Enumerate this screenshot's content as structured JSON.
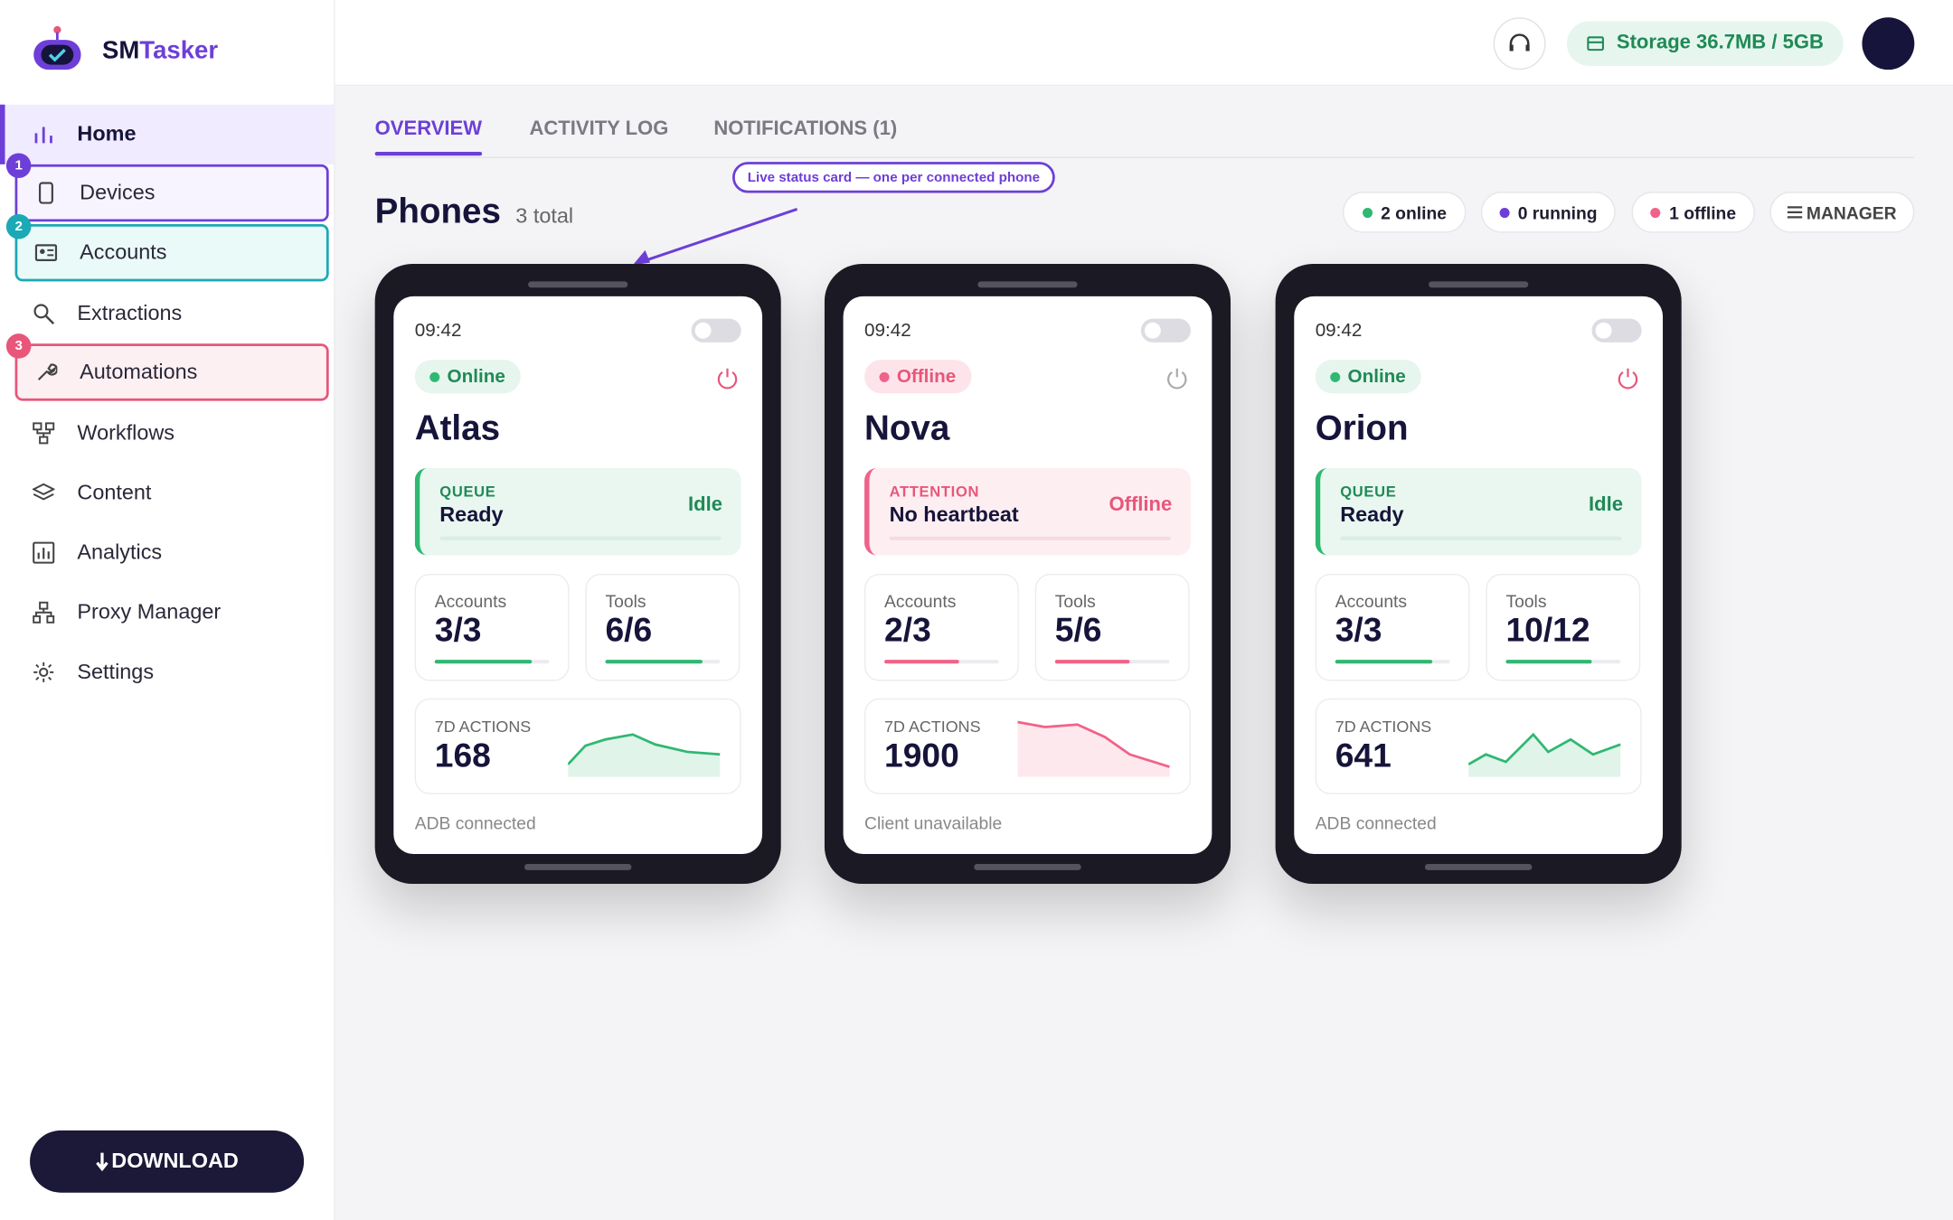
{
  "app": {
    "logo_prefix": "SM",
    "logo_suffix": "Tasker"
  },
  "sidebar": {
    "items": [
      "Home",
      "Devices",
      "Accounts",
      "Extractions",
      "Automations",
      "Workflows",
      "Content",
      "Analytics",
      "Proxy Manager",
      "Settings"
    ],
    "badges": [
      "1",
      "2",
      "3"
    ],
    "download": "DOWNLOAD"
  },
  "header": {
    "storage": "Storage 36.7MB / 5GB"
  },
  "tabs": [
    "OVERVIEW",
    "ACTIVITY LOG",
    "NOTIFICATIONS (1)"
  ],
  "annotation": "Live status card — one per connected phone",
  "section": {
    "title": "Phones",
    "count": "3 total",
    "chips": [
      "2 online",
      "0 running",
      "1 offline",
      "MANAGER"
    ]
  },
  "phones": [
    {
      "time": "09:42",
      "status": "Online",
      "name": "Atlas",
      "queue_label": "QUEUE",
      "queue_text": "Ready",
      "queue_state": "Idle",
      "accounts_label": "Accounts",
      "accounts": "3/3",
      "tools_label": "Tools",
      "tools": "6/6",
      "actions_label": "7D ACTIONS",
      "actions": 168,
      "footer": "ADB connected",
      "color": "#2fb872"
    },
    {
      "time": "09:42",
      "status": "Offline",
      "name": "Nova",
      "queue_label": "ATTENTION",
      "queue_text": "No heartbeat",
      "queue_state": "Offline",
      "accounts_label": "Accounts",
      "accounts": "2/3",
      "tools_label": "Tools",
      "tools": "5/6",
      "actions_label": "7D ACTIONS",
      "actions": 1900,
      "footer": "Client unavailable",
      "color": "#f06289"
    },
    {
      "time": "09:42",
      "status": "Online",
      "name": "Orion",
      "queue_label": "QUEUE",
      "queue_text": "Ready",
      "queue_state": "Idle",
      "accounts_label": "Accounts",
      "accounts": "3/3",
      "tools_label": "Tools",
      "tools": "10/12",
      "actions_label": "7D ACTIONS",
      "actions": 641,
      "footer": "ADB connected",
      "color": "#2fb872"
    }
  ]
}
